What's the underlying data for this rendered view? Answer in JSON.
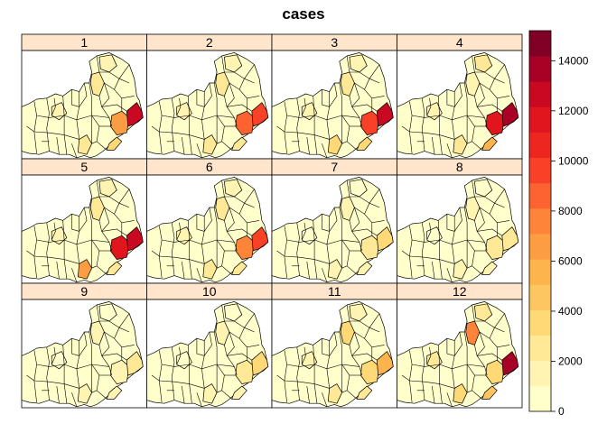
{
  "title": "cases",
  "colorkey": {
    "ticks": [
      "0",
      "2000",
      "4000",
      "6000",
      "8000",
      "10000",
      "12000",
      "14000"
    ],
    "tick_values": [
      0,
      2000,
      4000,
      6000,
      8000,
      10000,
      12000,
      14000
    ],
    "max": 15200,
    "bins": 15,
    "colors": [
      "#FFFFCC",
      "#FFF4B1",
      "#FFE996",
      "#FED976",
      "#FEC661",
      "#FEB44C",
      "#FD9D43",
      "#FD8438",
      "#FC6330",
      "#F94128",
      "#EE2620",
      "#E0151E",
      "#C90822",
      "#A90026",
      "#800026"
    ]
  },
  "panels": [
    {
      "label": "1",
      "levels": {
        "ne": 2,
        "east": 6,
        "coast": 12,
        "se": 3,
        "ne2": 1,
        "sw": 2,
        "w": 1
      }
    },
    {
      "label": "2",
      "levels": {
        "ne": 2,
        "east": 8,
        "coast": 9,
        "se": 2,
        "ne2": 1,
        "sw": 2,
        "w": 1
      }
    },
    {
      "label": "3",
      "levels": {
        "ne": 2,
        "east": 9,
        "coast": 12,
        "se": 3,
        "ne2": 1,
        "sw": 3,
        "w": 1
      }
    },
    {
      "label": "4",
      "levels": {
        "ne": 1,
        "east": 11,
        "coast": 13,
        "se": 5,
        "ne2": 2,
        "sw": 2,
        "w": 1
      }
    },
    {
      "label": "5",
      "levels": {
        "ne": 2,
        "east": 11,
        "coast": 12,
        "se": 2,
        "ne2": 1,
        "sw": 6,
        "w": 1
      }
    },
    {
      "label": "6",
      "levels": {
        "ne": 2,
        "east": 7,
        "coast": 9,
        "se": 2,
        "ne2": 1,
        "sw": 2,
        "w": 1
      }
    },
    {
      "label": "7",
      "levels": {
        "ne": 1,
        "east": 2,
        "coast": 3,
        "se": 1,
        "ne2": 0,
        "sw": 1,
        "w": 0
      }
    },
    {
      "label": "8",
      "levels": {
        "ne": 1,
        "east": 2,
        "coast": 2,
        "se": 1,
        "ne2": 0,
        "sw": 1,
        "w": 0
      }
    },
    {
      "label": "9",
      "levels": {
        "ne": 1,
        "east": 1,
        "coast": 2,
        "se": 1,
        "ne2": 0,
        "sw": 1,
        "w": 0
      }
    },
    {
      "label": "10",
      "levels": {
        "ne": 1,
        "east": 2,
        "coast": 3,
        "se": 1,
        "ne2": 0,
        "sw": 1,
        "w": 0
      }
    },
    {
      "label": "11",
      "levels": {
        "ne": 3,
        "east": 3,
        "coast": 5,
        "se": 2,
        "ne2": 1,
        "sw": 2,
        "w": 1
      }
    },
    {
      "label": "12",
      "levels": {
        "ne": 7,
        "east": 3,
        "coast": 13,
        "se": 4,
        "ne2": 2,
        "sw": 3,
        "w": 2
      }
    }
  ]
}
